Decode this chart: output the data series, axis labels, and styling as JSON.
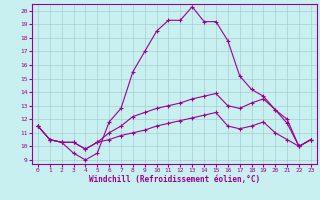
{
  "xlabel": "Windchill (Refroidissement éolien,°C)",
  "bg_color": "#c8f0f0",
  "line_color": "#990099",
  "grid_color": "#b0d0d0",
  "xlim": [
    -0.5,
    23.5
  ],
  "ylim": [
    8.7,
    20.5
  ],
  "xticks": [
    0,
    1,
    2,
    3,
    4,
    5,
    6,
    7,
    8,
    9,
    10,
    11,
    12,
    13,
    14,
    15,
    16,
    17,
    18,
    19,
    20,
    21,
    22,
    23
  ],
  "yticks": [
    9,
    10,
    11,
    12,
    13,
    14,
    15,
    16,
    17,
    18,
    19,
    20
  ],
  "line1_x": [
    0,
    1,
    2,
    3,
    4,
    5,
    6,
    7,
    8,
    9,
    10,
    11,
    12,
    13,
    14,
    15,
    16,
    17,
    18,
    19,
    20,
    21,
    22,
    23
  ],
  "line1_y": [
    11.5,
    10.5,
    10.3,
    9.5,
    9.0,
    9.5,
    11.8,
    12.8,
    15.5,
    17.0,
    18.5,
    19.3,
    19.3,
    20.3,
    19.2,
    19.2,
    17.8,
    15.2,
    14.2,
    13.7,
    12.7,
    11.7,
    10.0,
    10.5
  ],
  "line2_x": [
    0,
    1,
    2,
    3,
    4,
    5,
    6,
    7,
    8,
    9,
    10,
    11,
    12,
    13,
    14,
    15,
    16,
    17,
    18,
    19,
    20,
    21,
    22,
    23
  ],
  "line2_y": [
    11.5,
    10.5,
    10.3,
    10.3,
    9.8,
    10.3,
    11.0,
    11.5,
    12.2,
    12.5,
    12.8,
    13.0,
    13.2,
    13.5,
    13.7,
    13.9,
    13.0,
    12.8,
    13.2,
    13.5,
    12.7,
    12.0,
    10.0,
    10.5
  ],
  "line3_x": [
    0,
    1,
    2,
    3,
    4,
    5,
    6,
    7,
    8,
    9,
    10,
    11,
    12,
    13,
    14,
    15,
    16,
    17,
    18,
    19,
    20,
    21,
    22,
    23
  ],
  "line3_y": [
    11.5,
    10.5,
    10.3,
    10.3,
    9.8,
    10.3,
    10.5,
    10.8,
    11.0,
    11.2,
    11.5,
    11.7,
    11.9,
    12.1,
    12.3,
    12.5,
    11.5,
    11.3,
    11.5,
    11.8,
    11.0,
    10.5,
    10.0,
    10.5
  ],
  "marker": "+",
  "markersize": 3,
  "linewidth": 0.8,
  "tick_fontsize": 4.5,
  "xlabel_fontsize": 5.5
}
